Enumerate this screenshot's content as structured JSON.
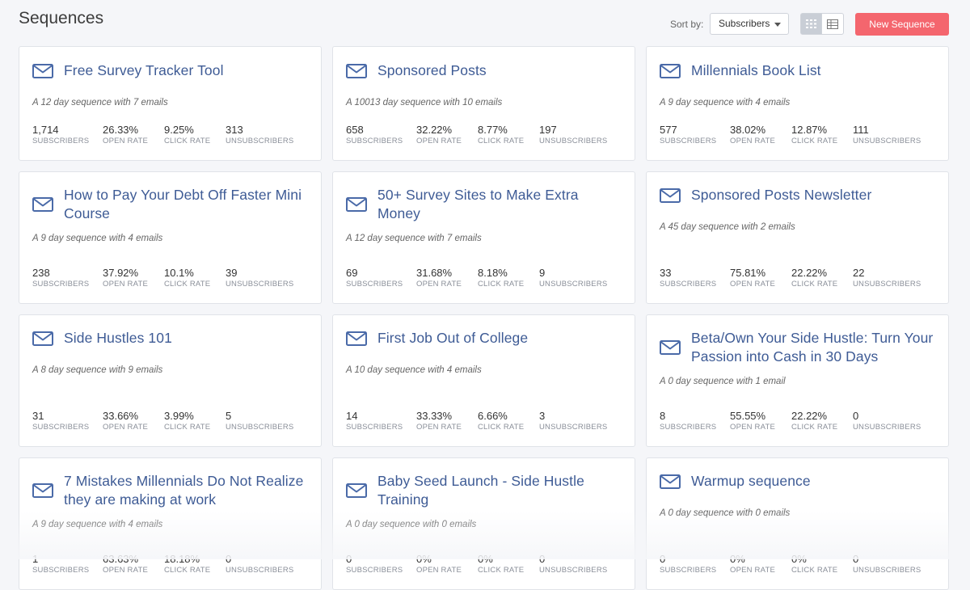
{
  "page": {
    "title": "Sequences"
  },
  "toolbar": {
    "sort_label": "Sort by:",
    "sort_value": "Subscribers",
    "new_button": "New Sequence"
  },
  "stat_labels": {
    "subscribers": "SUBSCRIBERS",
    "open_rate": "OPEN RATE",
    "click_rate": "CLICK RATE",
    "unsubscribers": "UNSUBSCRIBERS"
  },
  "colors": {
    "accent": "#f4666e",
    "title": "#3e5b95",
    "icon": "#4a6aa8"
  },
  "sequences": [
    {
      "title": "Free Survey Tracker Tool",
      "desc": "A 12 day sequence with 7 emails",
      "subscribers": "1,714",
      "open_rate": "26.33%",
      "click_rate": "9.25%",
      "unsubscribers": "313"
    },
    {
      "title": "Sponsored Posts",
      "desc": "A 10013 day sequence with 10 emails",
      "subscribers": "658",
      "open_rate": "32.22%",
      "click_rate": "8.77%",
      "unsubscribers": "197"
    },
    {
      "title": "Millennials Book List",
      "desc": "A 9 day sequence with 4 emails",
      "subscribers": "577",
      "open_rate": "38.02%",
      "click_rate": "12.87%",
      "unsubscribers": "111"
    },
    {
      "title": "How to Pay Your Debt Off Faster Mini Course",
      "desc": "A 9 day sequence with 4 emails",
      "subscribers": "238",
      "open_rate": "37.92%",
      "click_rate": "10.1%",
      "unsubscribers": "39"
    },
    {
      "title": "50+ Survey Sites to Make Extra Money",
      "desc": "A 12 day sequence with 7 emails",
      "subscribers": "69",
      "open_rate": "31.68%",
      "click_rate": "8.18%",
      "unsubscribers": "9"
    },
    {
      "title": "Sponsored Posts Newsletter",
      "desc": "A 45 day sequence with 2 emails",
      "subscribers": "33",
      "open_rate": "75.81%",
      "click_rate": "22.22%",
      "unsubscribers": "22"
    },
    {
      "title": "Side Hustles 101",
      "desc": "A 8 day sequence with 9 emails",
      "subscribers": "31",
      "open_rate": "33.66%",
      "click_rate": "3.99%",
      "unsubscribers": "5"
    },
    {
      "title": "First Job Out of College",
      "desc": "A 10 day sequence with 4 emails",
      "subscribers": "14",
      "open_rate": "33.33%",
      "click_rate": "6.66%",
      "unsubscribers": "3"
    },
    {
      "title": "Beta/Own Your Side Hustle: Turn Your Passion into Cash in 30 Days",
      "desc": "A 0 day sequence with 1 email",
      "subscribers": "8",
      "open_rate": "55.55%",
      "click_rate": "22.22%",
      "unsubscribers": "0"
    },
    {
      "title": "7 Mistakes Millennials Do Not Realize they are making at work",
      "desc": "A 9 day sequence with 4 emails",
      "subscribers": "1",
      "open_rate": "63.63%",
      "click_rate": "18.18%",
      "unsubscribers": "0"
    },
    {
      "title": "Baby Seed Launch - Side Hustle Training",
      "desc": "A 0 day sequence with 0 emails",
      "subscribers": "0",
      "open_rate": "0%",
      "click_rate": "0%",
      "unsubscribers": "0"
    },
    {
      "title": "Warmup sequence",
      "desc": "A 0 day sequence with 0 emails",
      "subscribers": "0",
      "open_rate": "0%",
      "click_rate": "0%",
      "unsubscribers": "0"
    }
  ]
}
